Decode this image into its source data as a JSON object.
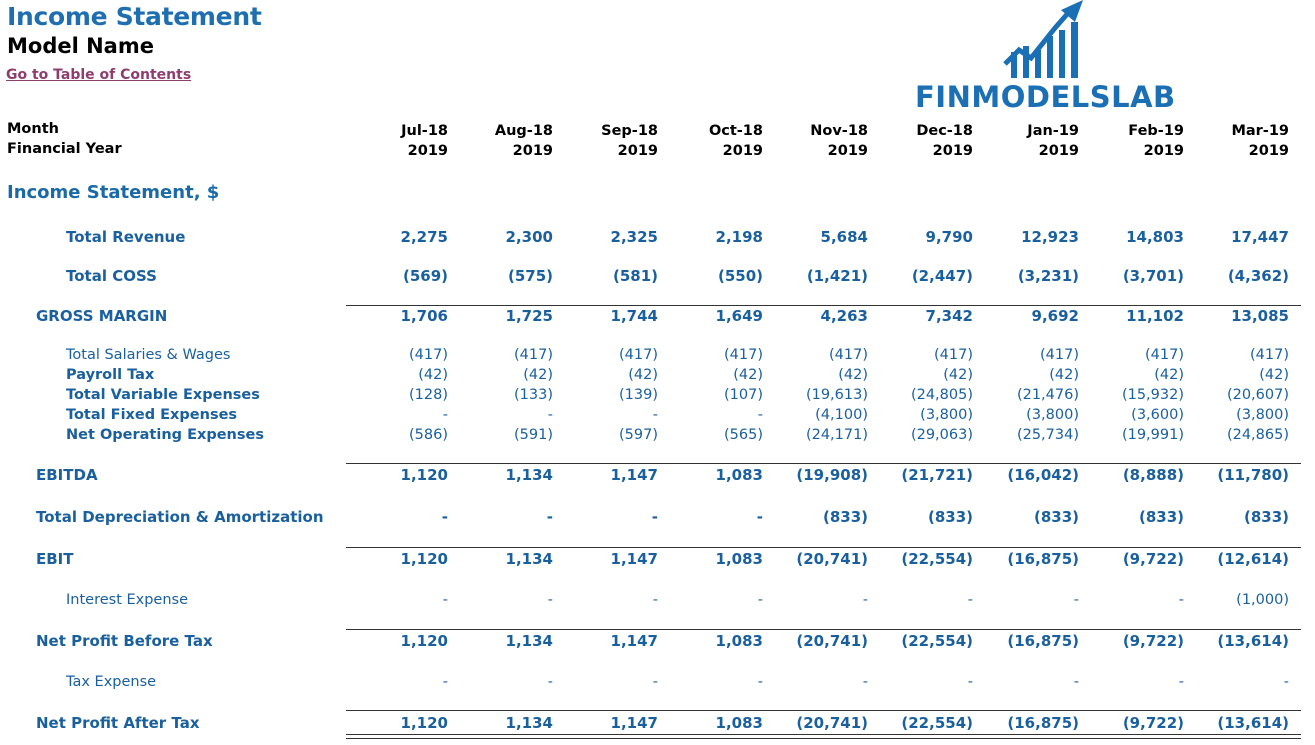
{
  "header": {
    "title": "Income Statement",
    "model_name": "Model Name",
    "toc_link": "Go to Table of Contents",
    "logo_text": "FINMODELSLAB"
  },
  "columns_header": {
    "month_label": "Month",
    "fy_label": "Financial Year",
    "months": [
      "Jul-18",
      "Aug-18",
      "Sep-18",
      "Oct-18",
      "Nov-18",
      "Dec-18",
      "Jan-19",
      "Feb-19",
      "Mar-19"
    ],
    "years": [
      "2019",
      "2019",
      "2019",
      "2019",
      "2019",
      "2019",
      "2019",
      "2019",
      "2019"
    ]
  },
  "section_title": "Income Statement, $",
  "rows": [
    {
      "label": "Total Revenue",
      "values": [
        "2,275",
        "2,300",
        "2,325",
        "2,198",
        "5,684",
        "9,790",
        "12,923",
        "14,803",
        "17,447"
      ]
    },
    {
      "label": "Total COSS",
      "values": [
        "(569)",
        "(575)",
        "(581)",
        "(550)",
        "(1,421)",
        "(2,447)",
        "(3,231)",
        "(3,701)",
        "(4,362)"
      ]
    },
    {
      "label": "GROSS MARGIN",
      "values": [
        "1,706",
        "1,725",
        "1,744",
        "1,649",
        "4,263",
        "7,342",
        "9,692",
        "11,102",
        "13,085"
      ]
    },
    {
      "label": "Total Salaries & Wages",
      "values": [
        "(417)",
        "(417)",
        "(417)",
        "(417)",
        "(417)",
        "(417)",
        "(417)",
        "(417)",
        "(417)"
      ]
    },
    {
      "label": "Payroll Tax",
      "values": [
        "(42)",
        "(42)",
        "(42)",
        "(42)",
        "(42)",
        "(42)",
        "(42)",
        "(42)",
        "(42)"
      ]
    },
    {
      "label": "Total Variable Expenses",
      "values": [
        "(128)",
        "(133)",
        "(139)",
        "(107)",
        "(19,613)",
        "(24,805)",
        "(21,476)",
        "(15,932)",
        "(20,607)"
      ]
    },
    {
      "label": "Total Fixed Expenses",
      "values": [
        "-",
        "-",
        "-",
        "-",
        "(4,100)",
        "(3,800)",
        "(3,800)",
        "(3,600)",
        "(3,800)"
      ]
    },
    {
      "label": "Net Operating Expenses",
      "values": [
        "(586)",
        "(591)",
        "(597)",
        "(565)",
        "(24,171)",
        "(29,063)",
        "(25,734)",
        "(19,991)",
        "(24,865)"
      ]
    },
    {
      "label": "EBITDA",
      "values": [
        "1,120",
        "1,134",
        "1,147",
        "1,083",
        "(19,908)",
        "(21,721)",
        "(16,042)",
        "(8,888)",
        "(11,780)"
      ]
    },
    {
      "label": "Total Depreciation & Amortization",
      "values": [
        "-",
        "-",
        "-",
        "-",
        "(833)",
        "(833)",
        "(833)",
        "(833)",
        "(833)"
      ]
    },
    {
      "label": "EBIT",
      "values": [
        "1,120",
        "1,134",
        "1,147",
        "1,083",
        "(20,741)",
        "(22,554)",
        "(16,875)",
        "(9,722)",
        "(12,614)"
      ]
    },
    {
      "label": "Interest Expense",
      "values": [
        "-",
        "-",
        "-",
        "-",
        "-",
        "-",
        "-",
        "-",
        "(1,000)"
      ]
    },
    {
      "label": "Net Profit Before Tax",
      "values": [
        "1,120",
        "1,134",
        "1,147",
        "1,083",
        "(20,741)",
        "(22,554)",
        "(16,875)",
        "(9,722)",
        "(13,614)"
      ]
    },
    {
      "label": "Tax Expense",
      "values": [
        "-",
        "-",
        "-",
        "-",
        "-",
        "-",
        "-",
        "-",
        "-"
      ]
    },
    {
      "label": "Net Profit After Tax",
      "values": [
        "1,120",
        "1,134",
        "1,147",
        "1,083",
        "(20,741)",
        "(22,554)",
        "(16,875)",
        "(9,722)",
        "(13,614)"
      ]
    }
  ],
  "colors": {
    "accent": "#1f6fb0",
    "link": "#8e3e6e",
    "text_blue": "#1a5f9e"
  }
}
